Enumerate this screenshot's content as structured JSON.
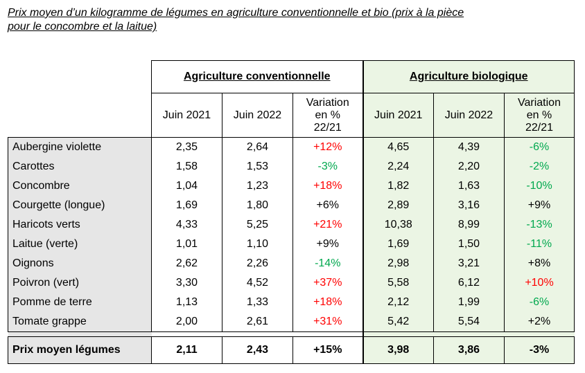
{
  "caption": {
    "line1": "Prix moyen d’un kilogramme de légumes en agriculture conventionnelle et bio (prix à la pièce",
    "line2": "pour le concombre et la laitue)"
  },
  "groups": {
    "conventional": "Agriculture conventionnelle",
    "organic": "Agriculture biologique"
  },
  "columns": {
    "june2021": "Juin 2021",
    "june2022": "Juin 2022",
    "variation_l1": "Variation",
    "variation_l2": "en %",
    "variation_l3": "22/21"
  },
  "colors": {
    "increase": "#ff0000",
    "decrease": "#00a84e",
    "label_bg": "#e6e6e6",
    "organic_bg": "#ebf5e4"
  },
  "rows": [
    {
      "name": "Aubergine violette",
      "c2021": "2,35",
      "c2022": "2,64",
      "cvar": "+12%",
      "cdir": "up",
      "b2021": "4,65",
      "b2022": "4,39",
      "bvar": "-6%",
      "bdir": "down"
    },
    {
      "name": "Carottes",
      "c2021": "1,58",
      "c2022": "1,53",
      "cvar": "-3%",
      "cdir": "down",
      "b2021": "2,24",
      "b2022": "2,20",
      "bvar": "-2%",
      "bdir": "down"
    },
    {
      "name": "Concombre",
      "c2021": "1,04",
      "c2022": "1,23",
      "cvar": "+18%",
      "cdir": "up",
      "b2021": "1,82",
      "b2022": "1,63",
      "bvar": "-10%",
      "bdir": "down"
    },
    {
      "name": "Courgette (longue)",
      "c2021": "1,69",
      "c2022": "1,80",
      "cvar": "+6%",
      "cdir": "neutral",
      "b2021": "2,89",
      "b2022": "3,16",
      "bvar": "+9%",
      "bdir": "neutral"
    },
    {
      "name": "Haricots verts",
      "c2021": "4,33",
      "c2022": "5,25",
      "cvar": "+21%",
      "cdir": "up",
      "b2021": "10,38",
      "b2022": "8,99",
      "bvar": "-13%",
      "bdir": "down"
    },
    {
      "name": "Laitue (verte)",
      "c2021": "1,01",
      "c2022": "1,10",
      "cvar": "+9%",
      "cdir": "neutral",
      "b2021": "1,69",
      "b2022": "1,50",
      "bvar": "-11%",
      "bdir": "down"
    },
    {
      "name": "Oignons",
      "c2021": "2,62",
      "c2022": "2,26",
      "cvar": "-14%",
      "cdir": "down",
      "b2021": "2,98",
      "b2022": "3,21",
      "bvar": "+8%",
      "bdir": "neutral"
    },
    {
      "name": "Poivron (vert)",
      "c2021": "3,30",
      "c2022": "4,52",
      "cvar": "+37%",
      "cdir": "up",
      "b2021": "5,58",
      "b2022": "6,12",
      "bvar": "+10%",
      "bdir": "up"
    },
    {
      "name": "Pomme de terre",
      "c2021": "1,13",
      "c2022": "1,33",
      "cvar": "+18%",
      "cdir": "up",
      "b2021": "2,12",
      "b2022": "1,99",
      "bvar": "-6%",
      "bdir": "down"
    },
    {
      "name": "Tomate grappe",
      "c2021": "2,00",
      "c2022": "2,61",
      "cvar": "+31%",
      "cdir": "up",
      "b2021": "5,42",
      "b2022": "5,54",
      "bvar": "+2%",
      "bdir": "neutral"
    }
  ],
  "total": {
    "name": "Prix moyen légumes",
    "c2021": "2,11",
    "c2022": "2,43",
    "cvar": "+15%",
    "b2021": "3,98",
    "b2022": "3,86",
    "bvar": "-3%"
  }
}
